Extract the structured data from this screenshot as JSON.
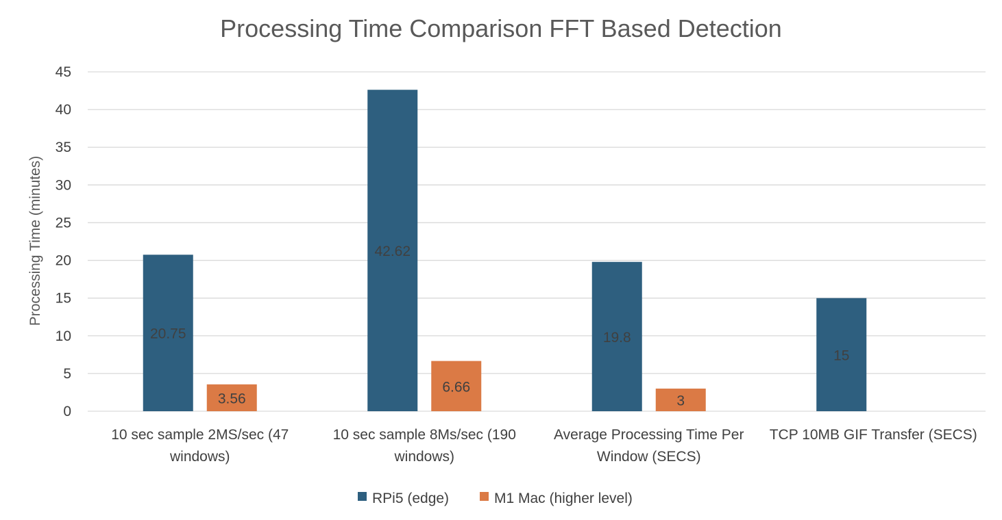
{
  "chart_data": {
    "type": "bar",
    "title": "Processing Time Comparison FFT Based Detection",
    "xlabel": "",
    "ylabel": "Processing Time (minutes)",
    "ylim": [
      0,
      45
    ],
    "yticks": [
      "0",
      "5",
      "10",
      "15",
      "20",
      "25",
      "30",
      "35",
      "40",
      "45"
    ],
    "grid": true,
    "legend_position": "bottom",
    "categories": [
      [
        "10 sec sample 2MS/sec (47",
        "windows)"
      ],
      [
        "10 sec sample 8Ms/sec (190",
        "windows)"
      ],
      [
        "Average Processing Time Per",
        "Window (SECS)"
      ],
      [
        "TCP 10MB GIF Transfer (SECS)"
      ]
    ],
    "series": [
      {
        "name": "RPi5 (edge)",
        "color": "#2e5f7f",
        "values": [
          20.75,
          42.62,
          19.8,
          15
        ],
        "labels": [
          "20.75",
          "42.62",
          "19.8",
          "15"
        ]
      },
      {
        "name": "M1 Mac (higher level)",
        "color": "#db7a45",
        "values": [
          3.56,
          6.66,
          3,
          null
        ],
        "labels": [
          "3.56",
          "6.66",
          "3",
          ""
        ]
      }
    ]
  }
}
